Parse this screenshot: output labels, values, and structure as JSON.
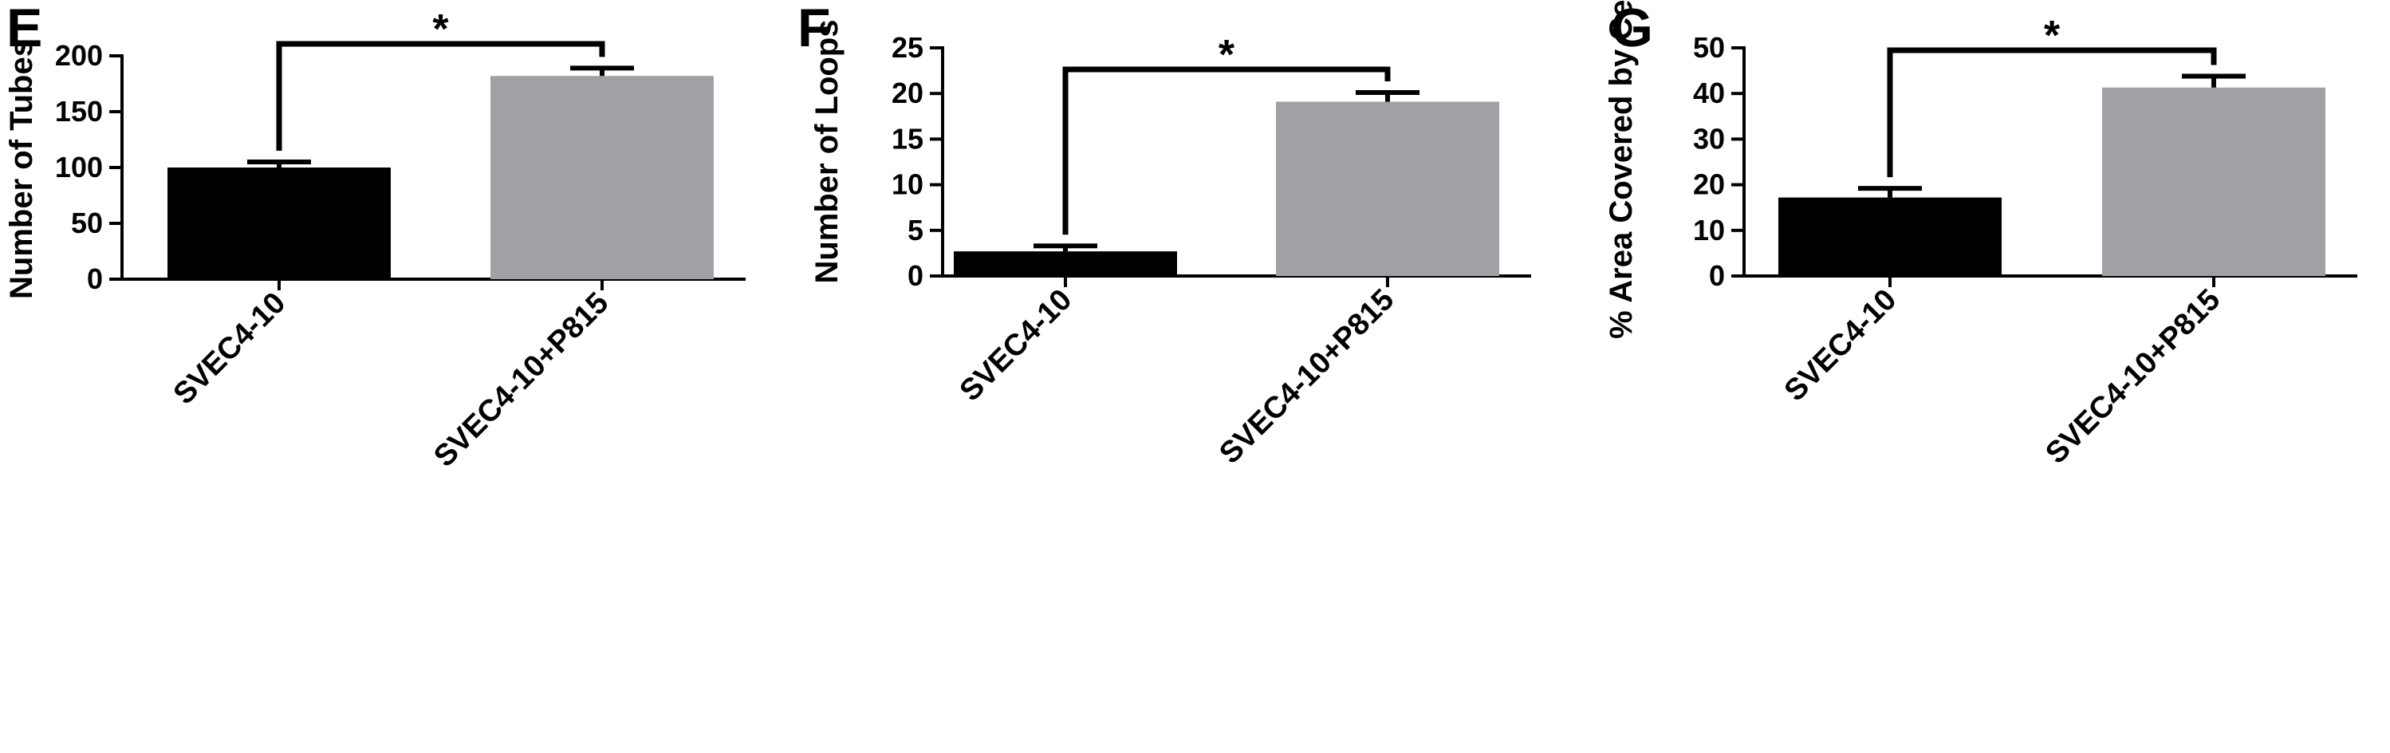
{
  "colors": {
    "bar_control": "#000000",
    "bar_treated": "#a1a0a5",
    "axis": "#000000",
    "background": "#ffffff"
  },
  "chart_data": [
    {
      "panel": "E",
      "type": "bar",
      "ylabel": "Number of Tubes",
      "xlabel": "",
      "categories": [
        "SVEC4-10",
        "SVEC4-10+P815"
      ],
      "values": [
        100,
        182
      ],
      "error": [
        5,
        7
      ],
      "ylim": [
        0,
        200
      ],
      "yticks": [
        0,
        50,
        100,
        150,
        200
      ],
      "significance": {
        "label": "*",
        "between": [
          0,
          1
        ]
      },
      "grid": false
    },
    {
      "panel": "F",
      "type": "bar",
      "ylabel": "Number of Loops",
      "xlabel": "",
      "categories": [
        "SVEC4-10",
        "SVEC4-10+P815"
      ],
      "values": [
        2.7,
        19.1
      ],
      "error": [
        0.6,
        1.0
      ],
      "ylim": [
        0,
        25
      ],
      "yticks": [
        0,
        5,
        10,
        15,
        20,
        25
      ],
      "significance": {
        "label": "*",
        "between": [
          0,
          1
        ]
      },
      "grid": false
    },
    {
      "panel": "G",
      "type": "bar",
      "ylabel": "% Area Covered by Cells",
      "xlabel": "",
      "categories": [
        "SVEC4-10",
        "SVEC4-10+P815"
      ],
      "values": [
        17.2,
        41.3
      ],
      "error": [
        2.0,
        2.5
      ],
      "ylim": [
        0,
        50
      ],
      "yticks": [
        0,
        10,
        20,
        30,
        40,
        50
      ],
      "significance": {
        "label": "*",
        "between": [
          0,
          1
        ]
      },
      "grid": false
    }
  ]
}
